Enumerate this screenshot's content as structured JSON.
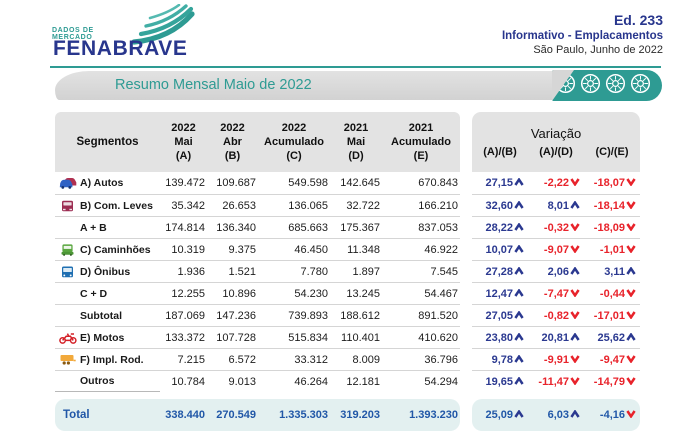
{
  "header": {
    "logo": {
      "tagline_line1": "DADOS DE",
      "tagline_line2": "MERCADO",
      "brand": "FENABRAVE"
    },
    "edition": "Ed. 233",
    "subtitle": "Informativo - Emplacamentos",
    "place_date": "São Paulo, Junho de 2022"
  },
  "banner": {
    "title": "Resumo Mensal Maio de 2022"
  },
  "colors": {
    "teal": "#2E9B93",
    "navy": "#28368D",
    "positive_blue": "#2B3990",
    "negative_red": "#E8232B",
    "total_blue": "#2157A7",
    "total_bg": "#E3F0F0"
  },
  "table": {
    "segment_header": "Segmentos",
    "columns": [
      {
        "year": "2022",
        "period": "Mai",
        "code": "(A)"
      },
      {
        "year": "2022",
        "period": "Abr",
        "code": "(B)"
      },
      {
        "year": "2022",
        "period": "Acumulado",
        "code": "(C)"
      },
      {
        "year": "2021",
        "period": "Mai",
        "code": "(D)"
      },
      {
        "year": "2021",
        "period": "Acumulado",
        "code": "(E)"
      }
    ],
    "variation": {
      "title": "Variação",
      "cols": [
        "(A)/(B)",
        "(A)/(D)",
        "(C)/(E)"
      ]
    },
    "rows": [
      {
        "segment": "A) Autos",
        "icon": "autos",
        "values": [
          "139.472",
          "109.687",
          "549.598",
          "142.645",
          "670.843"
        ],
        "variations": [
          {
            "value": "27,15",
            "dir": "up"
          },
          {
            "value": "-2,22",
            "dir": "down"
          },
          {
            "value": "-18,07",
            "dir": "down"
          }
        ]
      },
      {
        "segment": "B) Com. Leves",
        "icon": "com-leves",
        "values": [
          "35.342",
          "26.653",
          "136.065",
          "32.722",
          "166.210"
        ],
        "variations": [
          {
            "value": "32,60",
            "dir": "up"
          },
          {
            "value": "8,01",
            "dir": "up"
          },
          {
            "value": "-18,14",
            "dir": "down"
          }
        ]
      },
      {
        "segment": "A + B",
        "icon": null,
        "values": [
          "174.814",
          "136.340",
          "685.663",
          "175.367",
          "837.053"
        ],
        "variations": [
          {
            "value": "28,22",
            "dir": "up"
          },
          {
            "value": "-0,32",
            "dir": "down"
          },
          {
            "value": "-18,09",
            "dir": "down"
          }
        ]
      },
      {
        "segment": "C) Caminhões",
        "icon": "caminhoes",
        "values": [
          "10.319",
          "9.375",
          "46.450",
          "11.348",
          "46.922"
        ],
        "variations": [
          {
            "value": "10,07",
            "dir": "up"
          },
          {
            "value": "-9,07",
            "dir": "down"
          },
          {
            "value": "-1,01",
            "dir": "down"
          }
        ]
      },
      {
        "segment": "D) Ônibus",
        "icon": "onibus",
        "values": [
          "1.936",
          "1.521",
          "7.780",
          "1.897",
          "7.545"
        ],
        "variations": [
          {
            "value": "27,28",
            "dir": "up"
          },
          {
            "value": "2,06",
            "dir": "up"
          },
          {
            "value": "3,11",
            "dir": "up"
          }
        ]
      },
      {
        "segment": "C + D",
        "icon": null,
        "values": [
          "12.255",
          "10.896",
          "54.230",
          "13.245",
          "54.467"
        ],
        "variations": [
          {
            "value": "12,47",
            "dir": "up"
          },
          {
            "value": "-7,47",
            "dir": "down"
          },
          {
            "value": "-0,44",
            "dir": "down"
          }
        ]
      },
      {
        "segment": "Subtotal",
        "icon": null,
        "values": [
          "187.069",
          "147.236",
          "739.893",
          "188.612",
          "891.520"
        ],
        "variations": [
          {
            "value": "27,05",
            "dir": "up"
          },
          {
            "value": "-0,82",
            "dir": "down"
          },
          {
            "value": "-17,01",
            "dir": "down"
          }
        ]
      },
      {
        "segment": "E) Motos",
        "icon": "motos",
        "values": [
          "133.372",
          "107.728",
          "515.834",
          "110.401",
          "410.620"
        ],
        "variations": [
          {
            "value": "23,80",
            "dir": "up"
          },
          {
            "value": "20,81",
            "dir": "up"
          },
          {
            "value": "25,62",
            "dir": "up"
          }
        ]
      },
      {
        "segment": "F) Impl. Rod.",
        "icon": "impl-rod",
        "values": [
          "7.215",
          "6.572",
          "33.312",
          "8.009",
          "36.796"
        ],
        "variations": [
          {
            "value": "9,78",
            "dir": "up"
          },
          {
            "value": "-9,91",
            "dir": "down"
          },
          {
            "value": "-9,47",
            "dir": "down"
          }
        ]
      },
      {
        "segment": "Outros",
        "icon": null,
        "values": [
          "10.784",
          "9.013",
          "46.264",
          "12.181",
          "54.294"
        ],
        "variations": [
          {
            "value": "19,65",
            "dir": "up"
          },
          {
            "value": "-11,47",
            "dir": "down"
          },
          {
            "value": "-14,79",
            "dir": "down"
          }
        ]
      }
    ],
    "total": {
      "label": "Total",
      "values": [
        "338.440",
        "270.549",
        "1.335.303",
        "319.203",
        "1.393.230"
      ],
      "variations": [
        {
          "value": "25,09",
          "dir": "up"
        },
        {
          "value": "6,03",
          "dir": "up"
        },
        {
          "value": "-4,16",
          "dir": "down"
        }
      ]
    }
  }
}
